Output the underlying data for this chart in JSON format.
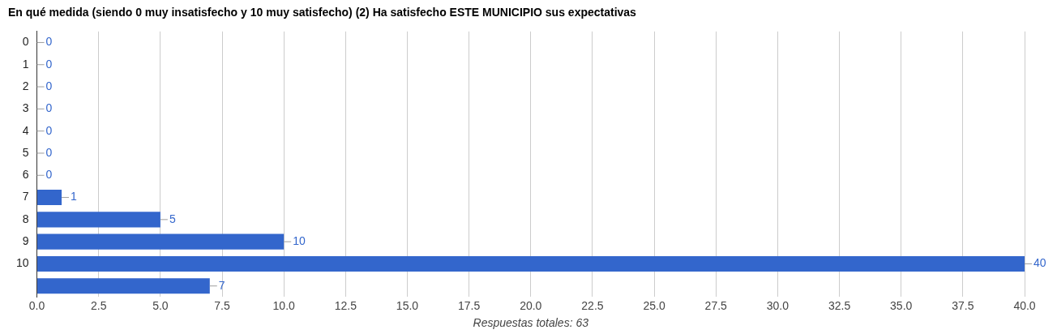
{
  "chart_data": {
    "type": "bar",
    "orientation": "horizontal",
    "title": "En qué medida (siendo 0 muy insatisfecho y 10 muy satisfecho) (2) Ha satisfecho ESTE MUNICIPIO sus expectativas",
    "xlabel": "Respuestas totales: 63",
    "categories": [
      "0",
      "1",
      "2",
      "3",
      "4",
      "5",
      "6",
      "7",
      "8",
      "9",
      "10",
      null
    ],
    "values": [
      0,
      0,
      0,
      0,
      0,
      0,
      0,
      1,
      5,
      10,
      40,
      7
    ],
    "color": "#3366cc",
    "xlim": [
      0,
      40
    ],
    "xticks": [
      {
        "value": 0,
        "label": "0.0"
      },
      {
        "value": 2.5,
        "label": "2.5"
      },
      {
        "value": 5,
        "label": "5.0"
      },
      {
        "value": 7.5,
        "label": "7.5"
      },
      {
        "value": 10,
        "label": "10.0"
      },
      {
        "value": 12.5,
        "label": "12.5"
      },
      {
        "value": 15,
        "label": "15.0"
      },
      {
        "value": 17.5,
        "label": "17.5"
      },
      {
        "value": 20,
        "label": "20.0"
      },
      {
        "value": 22.5,
        "label": "22.5"
      },
      {
        "value": 25,
        "label": "25.0"
      },
      {
        "value": 27.5,
        "label": "27.5"
      },
      {
        "value": 30,
        "label": "30.0"
      },
      {
        "value": 32.5,
        "label": "32.5"
      },
      {
        "value": 35,
        "label": "35.0"
      },
      {
        "value": 37.5,
        "label": "37.5"
      },
      {
        "value": 40,
        "label": "40.0"
      }
    ],
    "grid": "x",
    "data_labels": true
  }
}
